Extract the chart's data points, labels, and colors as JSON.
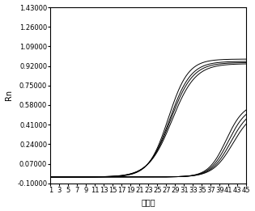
{
  "title": "",
  "xlabel": "循环数",
  "ylabel": "Rn",
  "xlim": [
    1,
    45
  ],
  "ylim": [
    -0.1,
    1.43
  ],
  "yticks": [
    -0.1,
    0.07,
    0.24,
    0.41,
    0.58,
    0.75,
    0.92,
    1.09,
    1.26,
    1.43
  ],
  "xticks": [
    1,
    3,
    5,
    7,
    9,
    11,
    13,
    15,
    17,
    19,
    21,
    23,
    25,
    27,
    29,
    31,
    33,
    35,
    37,
    39,
    41,
    43,
    45
  ],
  "early_curves": {
    "midpoints": [
      27.5,
      27.8,
      28.0,
      28.3
    ],
    "slopes": [
      0.45,
      0.42,
      0.4,
      0.38
    ],
    "plateaus": [
      0.98,
      0.96,
      0.95,
      0.94
    ],
    "baselines": [
      -0.045,
      -0.045,
      -0.045,
      -0.045
    ]
  },
  "late_curves": {
    "midpoints": [
      40.5,
      41.0,
      41.5,
      42.0
    ],
    "slopes": [
      0.5,
      0.48,
      0.46,
      0.44
    ],
    "plateaus": [
      0.6,
      0.58,
      0.56,
      0.54
    ],
    "baselines": [
      -0.045,
      -0.045,
      -0.045,
      -0.045
    ]
  },
  "line_color": "#000000",
  "bg_color": "#ffffff",
  "plot_bg_color": "#ffffff",
  "font_size_ticks": 6,
  "font_size_label": 7
}
